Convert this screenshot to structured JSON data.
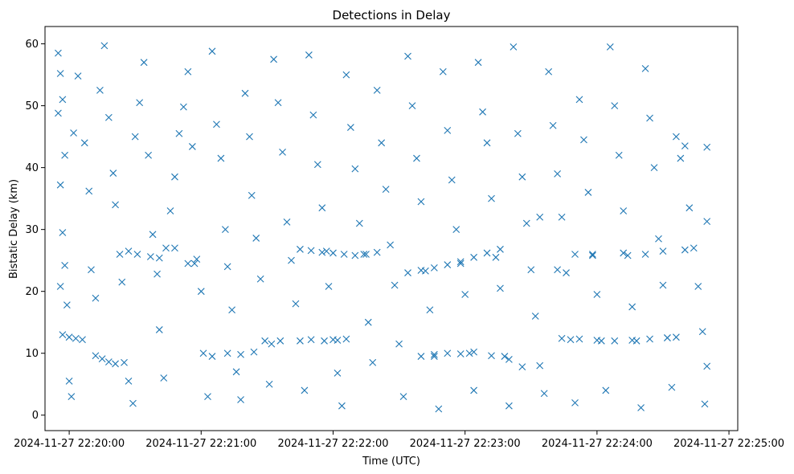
{
  "chart_data": {
    "type": "scatter",
    "title": "Detections in Delay",
    "xlabel": "Time (UTC)",
    "ylabel": "Bistatic Delay (km)",
    "marker": "x",
    "color": "#1f77b4",
    "xlim": [
      "2024-11-27 22:19:49",
      "2024-11-27 22:25:04"
    ],
    "ylim": [
      -2.5,
      62.8
    ],
    "x_ticks": [
      "2024-11-27 22:20:00",
      "2024-11-27 22:21:00",
      "2024-11-27 22:22:00",
      "2024-11-27 22:23:00",
      "2024-11-27 22:24:00",
      "2024-11-27 22:25:00"
    ],
    "y_ticks": [
      0,
      10,
      20,
      30,
      40,
      50,
      60
    ],
    "grid": false,
    "legend": "none",
    "series": [
      {
        "points": [
          [
            "22:19:55",
            58.5
          ],
          [
            "22:19:56",
            55.2
          ],
          [
            "22:19:57",
            51.0
          ],
          [
            "22:19:55",
            48.8
          ],
          [
            "22:19:58",
            42.0
          ],
          [
            "22:19:56",
            37.2
          ],
          [
            "22:19:57",
            29.5
          ],
          [
            "22:19:58",
            24.2
          ],
          [
            "22:19:56",
            20.8
          ],
          [
            "22:19:59",
            17.8
          ],
          [
            "22:20:00",
            5.5
          ],
          [
            "22:20:01",
            3.0
          ],
          [
            "22:20:02",
            45.6
          ],
          [
            "22:20:04",
            54.8
          ],
          [
            "22:20:07",
            44.0
          ],
          [
            "22:20:09",
            36.2
          ],
          [
            "22:20:10",
            23.5
          ],
          [
            "22:20:12",
            18.9
          ],
          [
            "22:20:14",
            52.5
          ],
          [
            "22:20:16",
            59.7
          ],
          [
            "22:20:18",
            48.1
          ],
          [
            "22:20:20",
            39.1
          ],
          [
            "22:20:21",
            34.0
          ],
          [
            "22:20:23",
            26.0
          ],
          [
            "22:20:24",
            21.5
          ],
          [
            "22:20:25",
            8.5
          ],
          [
            "22:20:27",
            5.5
          ],
          [
            "22:20:29",
            1.9
          ],
          [
            "22:20:30",
            45.0
          ],
          [
            "22:20:32",
            50.5
          ],
          [
            "22:20:34",
            57.0
          ],
          [
            "22:20:36",
            42.0
          ],
          [
            "22:20:38",
            29.2
          ],
          [
            "22:20:40",
            22.8
          ],
          [
            "22:20:41",
            13.8
          ],
          [
            "22:20:43",
            6.0
          ],
          [
            "22:20:44",
            27.0
          ],
          [
            "22:20:46",
            33.0
          ],
          [
            "22:20:48",
            38.5
          ],
          [
            "22:20:50",
            45.5
          ],
          [
            "22:20:52",
            49.8
          ],
          [
            "22:20:54",
            55.5
          ],
          [
            "22:20:56",
            43.4
          ],
          [
            "22:20:58",
            25.2
          ],
          [
            "22:21:00",
            20.0
          ],
          [
            "22:21:01",
            10.0
          ],
          [
            "22:21:03",
            3.0
          ],
          [
            "22:21:05",
            58.8
          ],
          [
            "22:21:07",
            47.0
          ],
          [
            "22:21:09",
            41.5
          ],
          [
            "22:21:11",
            30.0
          ],
          [
            "22:21:12",
            24.0
          ],
          [
            "22:21:14",
            17.0
          ],
          [
            "22:21:16",
            7.0
          ],
          [
            "22:21:18",
            2.5
          ],
          [
            "22:21:20",
            52.0
          ],
          [
            "22:21:22",
            45.0
          ],
          [
            "22:21:23",
            35.5
          ],
          [
            "22:21:25",
            28.6
          ],
          [
            "22:21:27",
            22.0
          ],
          [
            "22:21:29",
            12.0
          ],
          [
            "22:21:31",
            5.0
          ],
          [
            "22:21:33",
            57.5
          ],
          [
            "22:21:35",
            50.5
          ],
          [
            "22:21:37",
            42.5
          ],
          [
            "22:21:39",
            31.2
          ],
          [
            "22:21:41",
            25.0
          ],
          [
            "22:21:43",
            18.0
          ],
          [
            "22:21:45",
            12.0
          ],
          [
            "22:21:47",
            4.0
          ],
          [
            "22:21:49",
            58.2
          ],
          [
            "22:21:51",
            48.5
          ],
          [
            "22:21:53",
            40.5
          ],
          [
            "22:21:55",
            33.5
          ],
          [
            "22:21:57",
            26.5
          ],
          [
            "22:21:58",
            20.8
          ],
          [
            "22:22:00",
            12.2
          ],
          [
            "22:22:02",
            6.8
          ],
          [
            "22:22:04",
            1.5
          ],
          [
            "22:22:06",
            55.0
          ],
          [
            "22:22:08",
            46.5
          ],
          [
            "22:22:10",
            39.8
          ],
          [
            "22:22:12",
            31.0
          ],
          [
            "22:22:14",
            26.0
          ],
          [
            "22:22:16",
            15.0
          ],
          [
            "22:22:18",
            8.5
          ],
          [
            "22:22:20",
            52.5
          ],
          [
            "22:22:22",
            44.0
          ],
          [
            "22:22:24",
            36.5
          ],
          [
            "22:22:26",
            27.5
          ],
          [
            "22:22:28",
            21.0
          ],
          [
            "22:22:30",
            11.5
          ],
          [
            "22:22:32",
            3.0
          ],
          [
            "22:22:34",
            58.0
          ],
          [
            "22:22:36",
            50.0
          ],
          [
            "22:22:38",
            41.5
          ],
          [
            "22:22:40",
            34.5
          ],
          [
            "22:22:42",
            23.3
          ],
          [
            "22:22:44",
            17.0
          ],
          [
            "22:22:46",
            9.5
          ],
          [
            "22:22:48",
            1.0
          ],
          [
            "22:22:50",
            55.5
          ],
          [
            "22:22:52",
            46.0
          ],
          [
            "22:22:54",
            38.0
          ],
          [
            "22:22:56",
            30.0
          ],
          [
            "22:22:58",
            24.5
          ],
          [
            "22:23:00",
            19.5
          ],
          [
            "22:23:02",
            10.0
          ],
          [
            "22:23:04",
            4.0
          ],
          [
            "22:23:06",
            57.0
          ],
          [
            "22:23:08",
            49.0
          ],
          [
            "22:23:10",
            44.0
          ],
          [
            "22:23:12",
            35.0
          ],
          [
            "22:23:14",
            25.5
          ],
          [
            "22:23:16",
            20.5
          ],
          [
            "22:23:18",
            9.5
          ],
          [
            "22:23:20",
            1.5
          ],
          [
            "22:23:22",
            59.5
          ],
          [
            "22:23:24",
            45.5
          ],
          [
            "22:23:26",
            38.5
          ],
          [
            "22:23:28",
            31.0
          ],
          [
            "22:23:30",
            23.5
          ],
          [
            "22:23:32",
            16.0
          ],
          [
            "22:23:34",
            8.0
          ],
          [
            "22:23:36",
            3.5
          ],
          [
            "22:23:38",
            55.5
          ],
          [
            "22:23:40",
            46.8
          ],
          [
            "22:23:42",
            39.0
          ],
          [
            "22:23:44",
            32.0
          ],
          [
            "22:23:46",
            23.0
          ],
          [
            "22:23:48",
            12.2
          ],
          [
            "22:23:50",
            2.0
          ],
          [
            "22:23:52",
            51.0
          ],
          [
            "22:23:54",
            44.5
          ],
          [
            "22:23:56",
            36.0
          ],
          [
            "22:23:58",
            26.0
          ],
          [
            "22:24:00",
            19.5
          ],
          [
            "22:24:02",
            12.0
          ],
          [
            "22:24:04",
            4.0
          ],
          [
            "22:24:06",
            59.5
          ],
          [
            "22:24:08",
            50.0
          ],
          [
            "22:24:10",
            42.0
          ],
          [
            "22:24:12",
            33.0
          ],
          [
            "22:24:14",
            25.8
          ],
          [
            "22:24:16",
            17.5
          ],
          [
            "22:24:18",
            12.0
          ],
          [
            "22:24:20",
            1.2
          ],
          [
            "22:24:22",
            56.0
          ],
          [
            "22:24:24",
            48.0
          ],
          [
            "22:24:26",
            40.0
          ],
          [
            "22:24:28",
            28.5
          ],
          [
            "22:24:30",
            21.0
          ],
          [
            "22:24:32",
            12.5
          ],
          [
            "22:24:34",
            4.5
          ],
          [
            "22:24:36",
            45.0
          ],
          [
            "22:24:38",
            41.5
          ],
          [
            "22:24:40",
            43.5
          ],
          [
            "22:24:42",
            33.5
          ],
          [
            "22:24:44",
            27.0
          ],
          [
            "22:24:46",
            20.8
          ],
          [
            "22:24:48",
            13.5
          ],
          [
            "22:24:49",
            1.8
          ],
          [
            "22:24:50",
            43.3
          ],
          [
            "22:24:50",
            31.3
          ],
          [
            "22:24:50",
            7.9
          ]
        ]
      },
      {
        "points": [
          [
            "22:19:57",
            13.0
          ],
          [
            "22:20:00",
            12.6
          ],
          [
            "22:20:03",
            12.4
          ],
          [
            "22:20:06",
            12.2
          ],
          [
            "22:20:12",
            9.6
          ],
          [
            "22:20:15",
            9.1
          ],
          [
            "22:20:18",
            8.6
          ],
          [
            "22:20:21",
            8.3
          ],
          [
            "22:20:27",
            26.5
          ],
          [
            "22:20:31",
            26.0
          ],
          [
            "22:20:37",
            25.6
          ],
          [
            "22:20:41",
            25.4
          ],
          [
            "22:20:48",
            27.0
          ],
          [
            "22:20:54",
            24.5
          ],
          [
            "22:20:57",
            24.5
          ],
          [
            "22:21:05",
            9.5
          ],
          [
            "22:21:12",
            10.0
          ],
          [
            "22:21:18",
            9.8
          ],
          [
            "22:21:24",
            10.2
          ],
          [
            "22:21:32",
            11.5
          ],
          [
            "22:21:36",
            12.0
          ],
          [
            "22:21:45",
            26.8
          ],
          [
            "22:21:50",
            26.6
          ],
          [
            "22:21:55",
            26.3
          ],
          [
            "22:22:00",
            26.2
          ],
          [
            "22:22:05",
            26.0
          ],
          [
            "22:22:10",
            25.8
          ],
          [
            "22:22:15",
            26.0
          ],
          [
            "22:22:20",
            26.3
          ],
          [
            "22:21:50",
            12.2
          ],
          [
            "22:21:56",
            12.0
          ],
          [
            "22:22:02",
            12.1
          ],
          [
            "22:22:06",
            12.3
          ],
          [
            "22:22:34",
            23.0
          ],
          [
            "22:22:40",
            23.4
          ],
          [
            "22:22:46",
            23.8
          ],
          [
            "22:22:52",
            24.3
          ],
          [
            "22:22:58",
            24.8
          ],
          [
            "22:23:04",
            25.5
          ],
          [
            "22:23:10",
            26.2
          ],
          [
            "22:23:16",
            26.8
          ],
          [
            "22:22:40",
            9.5
          ],
          [
            "22:22:46",
            9.8
          ],
          [
            "22:22:52",
            10.0
          ],
          [
            "22:22:58",
            9.9
          ],
          [
            "22:23:04",
            10.2
          ],
          [
            "22:23:12",
            9.6
          ],
          [
            "22:23:20",
            9.0
          ],
          [
            "22:23:26",
            7.8
          ],
          [
            "22:23:34",
            32.0
          ],
          [
            "22:23:42",
            23.5
          ],
          [
            "22:23:50",
            26.0
          ],
          [
            "22:23:58",
            25.8
          ],
          [
            "22:23:44",
            12.4
          ],
          [
            "22:23:52",
            12.3
          ],
          [
            "22:24:00",
            12.1
          ],
          [
            "22:24:08",
            12.0
          ],
          [
            "22:24:16",
            12.1
          ],
          [
            "22:24:24",
            12.3
          ],
          [
            "22:24:32",
            12.5
          ],
          [
            "22:24:36",
            12.6
          ],
          [
            "22:24:12",
            26.2
          ],
          [
            "22:24:22",
            26.0
          ],
          [
            "22:24:30",
            26.5
          ],
          [
            "22:24:40",
            26.7
          ]
        ]
      }
    ]
  }
}
